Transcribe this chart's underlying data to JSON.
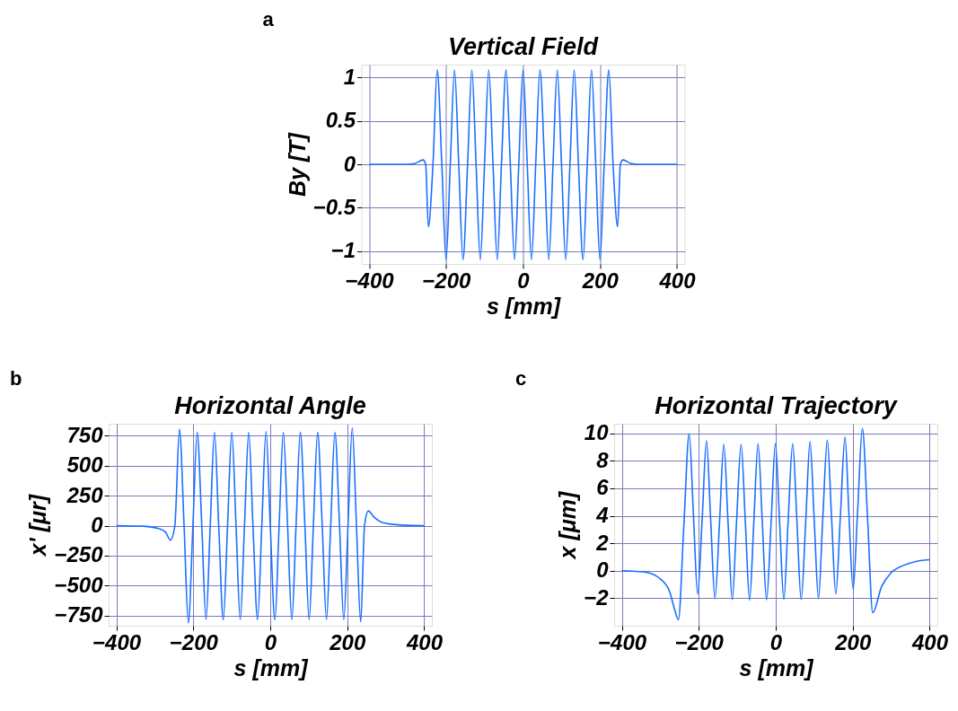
{
  "chart_data": [
    {
      "type": "line",
      "title": "Vertical Field",
      "xlabel": "s [mm]",
      "ylabel": "By [T]",
      "annotations": [
        "a"
      ],
      "grid": true,
      "xlim": [
        -420,
        420
      ],
      "ylim": [
        -1.15,
        1.15
      ],
      "xticks": [
        -400,
        -200,
        0,
        200,
        400
      ],
      "yticks": [
        -1,
        -0.5,
        0,
        0.5,
        1
      ],
      "x": [
        -400,
        -300,
        -280,
        -260,
        -253,
        -246,
        -234,
        -223,
        -211,
        -200,
        -189,
        -178,
        -167,
        -156,
        -144,
        -133,
        -122,
        -111,
        -100,
        -89,
        -78,
        -67,
        -56,
        -44,
        -33,
        -22,
        -11,
        0,
        11,
        22,
        33,
        44,
        56,
        67,
        78,
        89,
        100,
        111,
        122,
        133,
        144,
        156,
        167,
        178,
        189,
        200,
        211,
        223,
        234,
        246,
        253,
        260,
        280,
        300,
        400
      ],
      "series": [
        {
          "color": "#1a6fff",
          "values": [
            0,
            0,
            0.01,
            0.05,
            0,
            -0.72,
            0,
            1.09,
            0,
            -1.1,
            0,
            1.09,
            0,
            -1.1,
            0,
            1.09,
            0,
            -1.1,
            0,
            1.09,
            0,
            -1.1,
            0,
            1.09,
            0,
            -1.1,
            0,
            1.09,
            0,
            -1.1,
            0,
            1.09,
            0,
            -1.1,
            0,
            1.09,
            0,
            -1.1,
            0,
            1.09,
            0,
            -1.1,
            0,
            1.09,
            0,
            -1.1,
            0,
            1.09,
            0,
            -0.72,
            0,
            0.05,
            0.01,
            0,
            0
          ]
        }
      ]
    },
    {
      "type": "line",
      "title": "Horizontal Angle",
      "xlabel": "s [mm]",
      "ylabel": "x' [μr]",
      "annotations": [
        "b"
      ],
      "grid": true,
      "xlim": [
        -420,
        420
      ],
      "ylim": [
        -835,
        850
      ],
      "xticks": [
        -400,
        -200,
        0,
        200,
        400
      ],
      "yticks": [
        -750,
        -500,
        -250,
        0,
        250,
        500,
        750
      ],
      "x": [
        -400,
        -330,
        -290,
        -272,
        -260,
        -248,
        -236,
        -224,
        -213,
        -201,
        -190,
        -178,
        -167,
        -156,
        -145,
        -134,
        -122,
        -111,
        -100,
        -89,
        -78,
        -67,
        -56,
        -45,
        -33,
        -22,
        -11,
        0,
        12,
        23,
        34,
        45,
        56,
        67,
        78,
        90,
        101,
        112,
        123,
        135,
        146,
        157,
        168,
        180,
        191,
        202,
        213,
        224,
        235,
        245,
        255,
        270,
        288,
        320,
        350,
        400
      ],
      "series": [
        {
          "color": "#1a6fff",
          "values": [
            0,
            -5,
            -25,
            -55,
            -121,
            0,
            804,
            0,
            -812,
            0,
            779,
            0,
            -786,
            0,
            779,
            0,
            -786,
            0,
            779,
            0,
            -786,
            0,
            779,
            0,
            -786,
            0,
            784,
            0,
            -786,
            0,
            779,
            0,
            -786,
            0,
            779,
            0,
            -786,
            0,
            779,
            0,
            -786,
            0,
            779,
            0,
            -786,
            0,
            814,
            0,
            -804,
            0,
            123,
            70,
            30,
            10,
            3,
            0
          ]
        }
      ]
    },
    {
      "type": "line",
      "title": "Horizontal Trajectory",
      "xlabel": "s [mm]",
      "ylabel": "x [μm]",
      "annotations": [
        "c"
      ],
      "grid": true,
      "xlim": [
        -420,
        420
      ],
      "ylim": [
        -4,
        10.7
      ],
      "xticks": [
        -400,
        -200,
        0,
        200,
        400
      ],
      "yticks": [
        -2,
        0,
        2,
        4,
        6,
        8,
        10
      ],
      "x": [
        -400,
        -340,
        -300,
        -276,
        -262,
        -253,
        -239,
        -225,
        -214,
        -203,
        -191,
        -180,
        -169,
        -158,
        -146,
        -135,
        -124,
        -113,
        -102,
        -90,
        -79,
        -68,
        -57,
        -46,
        -35,
        -24,
        -12,
        -1,
        10,
        21,
        32,
        44,
        55,
        66,
        78,
        89,
        100,
        111,
        122,
        134,
        145,
        156,
        168,
        180,
        190,
        201,
        213,
        225,
        239,
        252,
        275,
        299,
        330,
        369,
        400
      ],
      "series": [
        {
          "color": "#1a6fff",
          "values": [
            0,
            -0.1,
            -0.6,
            -1.5,
            -2.9,
            -3.56,
            3.2,
            9.96,
            4.1,
            -1.7,
            3.9,
            9.46,
            3.6,
            -2.03,
            3.6,
            9.2,
            3.5,
            -2.1,
            3.5,
            9.2,
            3.5,
            -2.14,
            3.55,
            9.25,
            3.55,
            -2.12,
            3.55,
            9.25,
            3.55,
            -2.1,
            3.55,
            9.25,
            3.6,
            -2.1,
            3.65,
            9.4,
            3.65,
            -2.03,
            3.7,
            9.5,
            3.9,
            -1.7,
            4.0,
            9.75,
            4.2,
            -1.33,
            4.5,
            10.35,
            3.6,
            -3.05,
            -1.15,
            -0.17,
            0.37,
            0.7,
            0.8
          ]
        }
      ]
    }
  ]
}
